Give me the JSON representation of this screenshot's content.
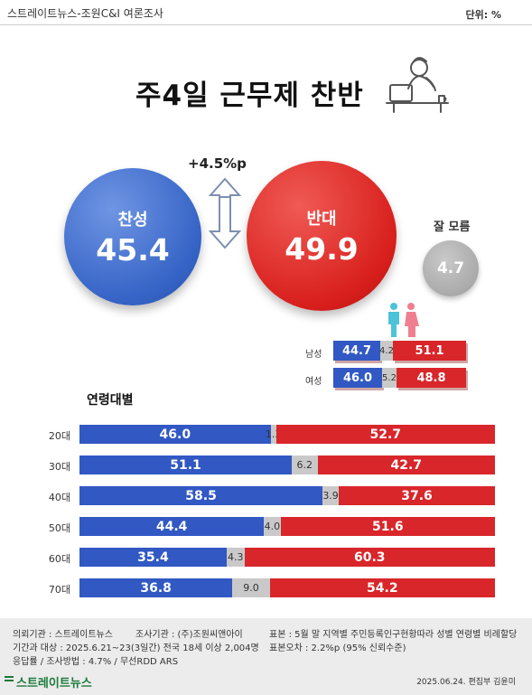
{
  "header": {
    "source": "스트레이트뉴스-조원C&I 여론조사",
    "unit": "단위: %"
  },
  "title": "주4일 근무제 찬반",
  "overall": {
    "agree_label": "찬성",
    "agree_value": "45.4",
    "disagree_label": "반대",
    "disagree_value": "49.9",
    "unknown_label": "잘 모름",
    "unknown_value": "4.7",
    "difference": "+4.5%p"
  },
  "gender": {
    "male": {
      "label": "남성",
      "agree": "44.7",
      "unknown": "4.2",
      "disagree": "51.1"
    },
    "female": {
      "label": "여성",
      "agree": "46.0",
      "unknown": "5.2",
      "disagree": "48.8"
    }
  },
  "age_title": "연령대별",
  "chart_data": {
    "type": "bar",
    "stacked": true,
    "orientation": "horizontal",
    "categories": [
      "20대",
      "30대",
      "40대",
      "50대",
      "60대",
      "70대"
    ],
    "series": [
      {
        "values": [
          46.0,
          51.1,
          58.5,
          44.4,
          35.4,
          36.8
        ],
        "color": "#3158c3"
      },
      {
        "values": [
          1.3,
          6.2,
          3.9,
          4.0,
          4.3,
          9.0
        ],
        "color": "#c9c9c9"
      },
      {
        "values": [
          52.7,
          42.7,
          37.6,
          51.6,
          60.3,
          54.2
        ],
        "color": "#d8262a"
      }
    ],
    "xlim": [
      0,
      100
    ]
  },
  "footer": {
    "line1_a": "의뢰기관 : 스트레이트뉴스",
    "line1_b": "조사기관 : (주)조원씨앤아이",
    "line1_c": "표본 : 5월 말 지역별 주민등록인구현황따라 성별 연령별 비례할당",
    "line2_a": "기간과 대상 : 2025.6.21~23(3일간)  전국 18세 이상  2,004명",
    "line2_b": "표본오차 : 2.2%p (95% 신뢰수준)",
    "line3": "응답률 / 조사방법 : 4.7% / 무선RDD ARS",
    "logo": "스트레이트뉴스",
    "byline": "2025.06.24. 편집부 김윤미"
  },
  "colors": {
    "agree": "#3158c3",
    "disagree": "#d8262a",
    "unknown": "#c9c9c9"
  }
}
